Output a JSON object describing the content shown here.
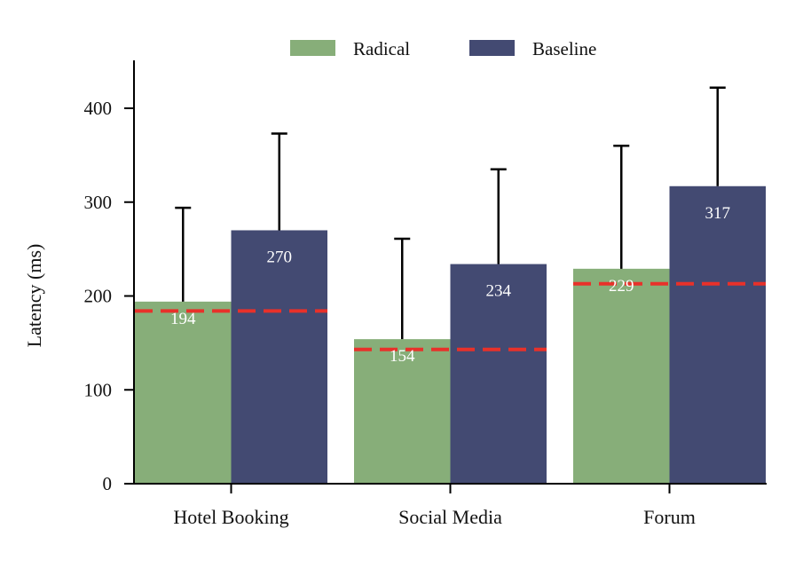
{
  "chart_data": {
    "type": "bar",
    "title": "",
    "xlabel": "",
    "ylabel": "Latency (ms)",
    "ylim": [
      0,
      450
    ],
    "yticks": [
      0,
      100,
      200,
      300,
      400
    ],
    "grid": false,
    "legend_position": "top-center",
    "categories": [
      "Hotel Booking",
      "Social Media",
      "Forum"
    ],
    "series": [
      {
        "name": "Radical",
        "color": "#87ae79",
        "values": [
          194,
          154,
          229
        ],
        "error_upper": [
          294,
          261,
          360
        ],
        "labels": [
          "194",
          "154",
          "229"
        ]
      },
      {
        "name": "Baseline",
        "color": "#434a72",
        "values": [
          270,
          234,
          317
        ],
        "error_upper": [
          373,
          335,
          422
        ],
        "labels": [
          "270",
          "234",
          "317"
        ]
      }
    ],
    "reference_lines": {
      "color": "#e8312a",
      "style": "dashed",
      "values": [
        184,
        143,
        213
      ]
    }
  },
  "legend": {
    "items": [
      {
        "label": "Radical",
        "color": "#87ae79"
      },
      {
        "label": "Baseline",
        "color": "#434a72"
      }
    ]
  }
}
